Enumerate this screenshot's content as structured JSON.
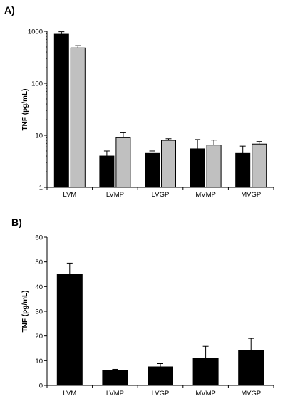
{
  "chart_data": [
    {
      "panel_label": "A)",
      "type": "bar",
      "scale": "log",
      "ylabel": "TNF (pg/mL)",
      "ylim": [
        1,
        1000
      ],
      "yticks": [
        1,
        10,
        100,
        1000
      ],
      "categories": [
        "LVM",
        "LVMP",
        "LVGP",
        "MVMP",
        "MVGP"
      ],
      "series": [
        {
          "color": "#000000",
          "values": [
            880,
            4.0,
            4.5,
            5.5,
            4.5
          ],
          "errors": [
            100,
            1.0,
            0.5,
            2.8,
            1.7
          ]
        },
        {
          "color": "#c0c0c0",
          "values": [
            480,
            9.0,
            8.0,
            6.5,
            6.8
          ],
          "errors": [
            50,
            2.2,
            0.6,
            1.6,
            0.8
          ]
        }
      ]
    },
    {
      "panel_label": "B)",
      "type": "bar",
      "scale": "linear",
      "ylabel": "TNF (pg/mL)",
      "ylim": [
        0,
        60
      ],
      "yticks": [
        0,
        10,
        20,
        30,
        40,
        50,
        60
      ],
      "categories": [
        "LVM",
        "LVMP",
        "LVGP",
        "MVMP",
        "MVGP"
      ],
      "series": [
        {
          "color": "#000000",
          "values": [
            45,
            6,
            7.5,
            11,
            14
          ],
          "errors": [
            4.5,
            0.5,
            1.3,
            4.8,
            5
          ]
        }
      ]
    }
  ]
}
